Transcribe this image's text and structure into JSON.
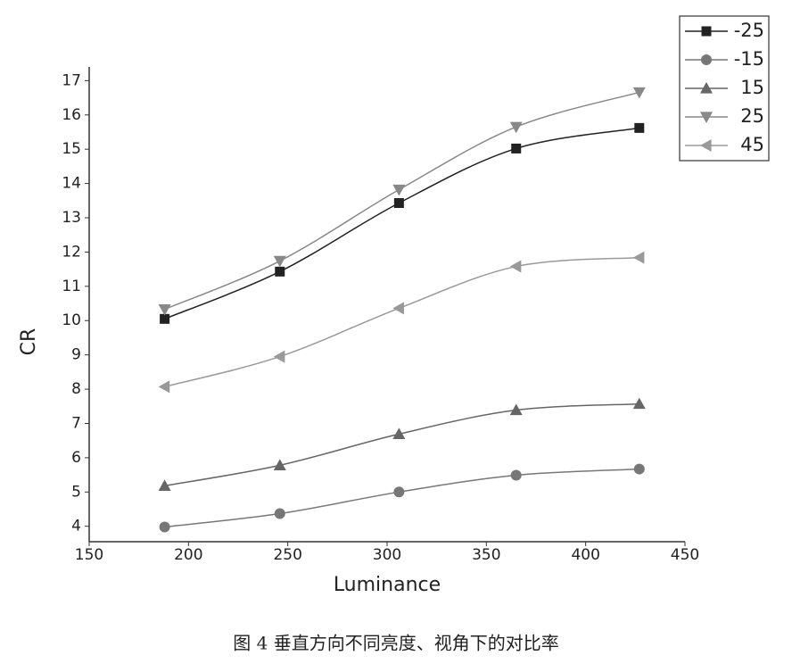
{
  "chart_data": {
    "type": "line",
    "x_label": "Luminance",
    "y_label": "CR",
    "caption": "图 4 垂直方向不同亮度、视角下的对比率",
    "x": [
      188,
      246,
      306,
      365,
      427
    ],
    "series": [
      {
        "name": "-25",
        "color": "#222222",
        "marker": "square",
        "values": [
          10.05,
          11.43,
          13.43,
          15.02,
          15.62
        ]
      },
      {
        "name": "-15",
        "color": "#777777",
        "marker": "circle",
        "values": [
          3.98,
          4.37,
          5.0,
          5.49,
          5.67
        ]
      },
      {
        "name": "15",
        "color": "#666666",
        "marker": "triangle-up",
        "values": [
          5.18,
          5.78,
          6.69,
          7.39,
          7.57
        ]
      },
      {
        "name": "25",
        "color": "#888888",
        "marker": "triangle-down",
        "values": [
          10.33,
          11.74,
          13.82,
          15.65,
          16.66
        ]
      },
      {
        "name": "45",
        "color": "#999999",
        "marker": "triangle-left",
        "values": [
          8.07,
          8.95,
          10.36,
          11.58,
          11.84
        ]
      }
    ],
    "xlim": [
      150,
      450
    ],
    "xticks": [
      150,
      200,
      250,
      300,
      350,
      400,
      450
    ],
    "ylim": [
      3.55,
      17.4
    ],
    "yticks": [
      4,
      5,
      6,
      7,
      8,
      9,
      10,
      11,
      12,
      13,
      14,
      15,
      16,
      17
    ],
    "legend": "top-right"
  }
}
